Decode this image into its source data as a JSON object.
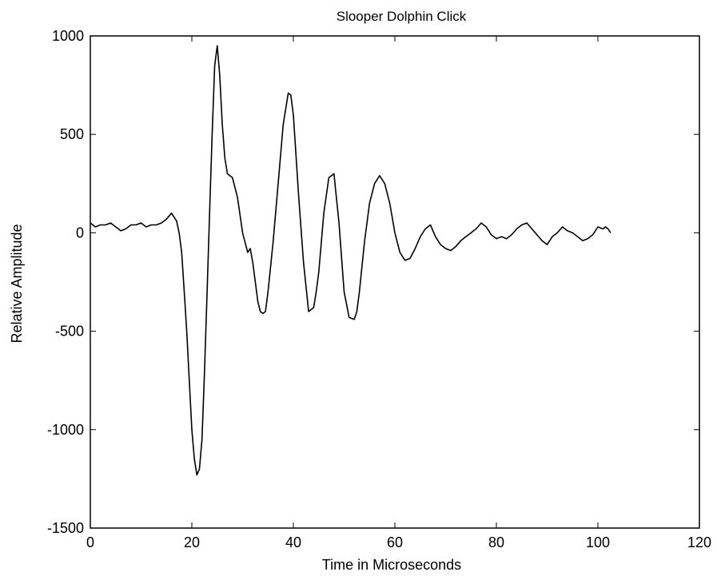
{
  "chart_data": {
    "type": "line",
    "title": "Slooper Dolphin Click",
    "xlabel": "Time in Microseconds",
    "ylabel": "Relative Amplitude",
    "xlim": [
      0,
      120
    ],
    "ylim": [
      -1500,
      1000
    ],
    "xticks": [
      0,
      20,
      40,
      60,
      80,
      100,
      120
    ],
    "yticks": [
      -1500,
      -1000,
      -500,
      0,
      500,
      1000
    ],
    "xtick_labels": [
      "0",
      "20",
      "40",
      "60",
      "80",
      "100",
      "120"
    ],
    "ytick_labels": [
      "-1500",
      "-1000",
      "-500",
      "0",
      "500",
      "1000"
    ],
    "grid": false,
    "line_color": "#000000",
    "series": [
      {
        "x": [
          0,
          1,
          2,
          3,
          4,
          5,
          6,
          7,
          8,
          9,
          10,
          11,
          12,
          13,
          14,
          15,
          16,
          17,
          17.5,
          18,
          18.5,
          19,
          19.5,
          20,
          20.5,
          21,
          21.5,
          22,
          22.5,
          23,
          23.5,
          24,
          24.5,
          25,
          25.5,
          26,
          26.5,
          27,
          28,
          29,
          30,
          31,
          31.5,
          32,
          32.5,
          33,
          33.5,
          34,
          34.5,
          35,
          36,
          37,
          38,
          39,
          39.5,
          40,
          41,
          42,
          43,
          44,
          44.5,
          45,
          46,
          47,
          48,
          49,
          50,
          51,
          52,
          52.5,
          53,
          54,
          55,
          56,
          57,
          58,
          59,
          60,
          61,
          62,
          63,
          64,
          65,
          66,
          67,
          68,
          69,
          70,
          71,
          72,
          73,
          74,
          75,
          76,
          77,
          78,
          79,
          80,
          81,
          82,
          83,
          84,
          85,
          86,
          87,
          88,
          89,
          90,
          91,
          92,
          93,
          94,
          95,
          96,
          97,
          98,
          99,
          100,
          101,
          101.5,
          102,
          102.5
        ],
        "y": [
          50,
          30,
          40,
          40,
          50,
          30,
          10,
          20,
          40,
          40,
          50,
          30,
          40,
          40,
          50,
          70,
          100,
          60,
          0,
          -100,
          -300,
          -500,
          -750,
          -1000,
          -1150,
          -1230,
          -1200,
          -1050,
          -700,
          -300,
          100,
          500,
          850,
          950,
          800,
          550,
          380,
          300,
          280,
          180,
          0,
          -100,
          -80,
          -150,
          -250,
          -350,
          -400,
          -410,
          -400,
          -300,
          -50,
          250,
          550,
          710,
          700,
          600,
          200,
          -150,
          -400,
          -380,
          -300,
          -200,
          100,
          280,
          300,
          50,
          -300,
          -430,
          -440,
          -400,
          -300,
          -50,
          150,
          250,
          290,
          250,
          150,
          0,
          -100,
          -140,
          -130,
          -80,
          -20,
          20,
          40,
          -20,
          -60,
          -80,
          -90,
          -70,
          -40,
          -20,
          0,
          20,
          50,
          30,
          -10,
          -30,
          -20,
          -30,
          -10,
          20,
          40,
          50,
          20,
          -10,
          -40,
          -60,
          -20,
          0,
          30,
          10,
          0,
          -20,
          -40,
          -30,
          -10,
          30,
          20,
          30,
          20,
          0
        ]
      }
    ]
  }
}
